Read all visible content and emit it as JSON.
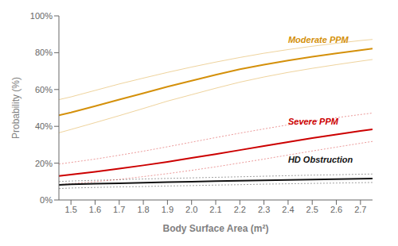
{
  "chart_data": {
    "type": "line",
    "title": "",
    "xlabel": "Body Surface Area (m²)",
    "ylabel": "Probability (%)",
    "x": [
      1.45,
      1.5,
      1.6,
      1.7,
      1.8,
      1.9,
      2.0,
      2.1,
      2.2,
      2.3,
      2.4,
      2.5,
      2.6,
      2.7,
      2.75
    ],
    "xlim": [
      1.45,
      2.75
    ],
    "ylim": [
      0.0,
      1.0
    ],
    "xticks": [
      1.5,
      1.6,
      1.7,
      1.8,
      1.9,
      {
        "value": 2.0,
        "label": "2.0"
      },
      2.1,
      2.2,
      2.3,
      2.4,
      2.5,
      2.6,
      2.7
    ],
    "yticks": [
      {
        "value": 0.0,
        "label": "0%"
      },
      {
        "value": 0.2,
        "label": "20%"
      },
      {
        "value": 0.4,
        "label": "40%"
      },
      {
        "value": 0.6,
        "label": "60%"
      },
      {
        "value": 0.8,
        "label": "80%"
      },
      {
        "value": 1.0,
        "label": "100%"
      }
    ],
    "grid": false,
    "series": [
      {
        "name": "Moderate PPM",
        "color": "#D4900A",
        "values": [
          0.46,
          0.475,
          0.51,
          0.545,
          0.58,
          0.615,
          0.648,
          0.68,
          0.71,
          0.735,
          0.758,
          0.778,
          0.796,
          0.814,
          0.822
        ],
        "ci_upper": [
          0.545,
          0.56,
          0.595,
          0.63,
          0.662,
          0.693,
          0.722,
          0.749,
          0.774,
          0.797,
          0.817,
          0.835,
          0.851,
          0.866,
          0.872
        ],
        "ci_lower": [
          0.365,
          0.383,
          0.42,
          0.458,
          0.497,
          0.537,
          0.572,
          0.607,
          0.64,
          0.668,
          0.693,
          0.715,
          0.735,
          0.754,
          0.763
        ]
      },
      {
        "name": "Severe PPM",
        "color": "#CC0000",
        "values": [
          0.13,
          0.138,
          0.153,
          0.17,
          0.188,
          0.207,
          0.228,
          0.249,
          0.271,
          0.293,
          0.315,
          0.336,
          0.356,
          0.375,
          0.384
        ],
        "ci_upper": [
          0.195,
          0.204,
          0.222,
          0.243,
          0.265,
          0.289,
          0.314,
          0.339,
          0.363,
          0.386,
          0.408,
          0.428,
          0.447,
          0.464,
          0.472
        ],
        "ci_lower": [
          0.083,
          0.089,
          0.099,
          0.112,
          0.127,
          0.143,
          0.161,
          0.18,
          0.201,
          0.222,
          0.244,
          0.266,
          0.287,
          0.308,
          0.318
        ]
      },
      {
        "name": "HD Obstruction",
        "color": "#111111",
        "values": [
          0.082,
          0.085,
          0.088,
          0.091,
          0.094,
          0.097,
          0.099,
          0.102,
          0.104,
          0.107,
          0.109,
          0.111,
          0.113,
          0.115,
          0.116
        ],
        "ci_upper": [
          0.1,
          0.103,
          0.107,
          0.11,
          0.114,
          0.117,
          0.12,
          0.123,
          0.126,
          0.129,
          0.132,
          0.135,
          0.137,
          0.14,
          0.141
        ],
        "ci_lower": [
          0.062,
          0.065,
          0.068,
          0.071,
          0.073,
          0.076,
          0.078,
          0.081,
          0.083,
          0.086,
          0.088,
          0.09,
          0.092,
          0.094,
          0.095
        ]
      }
    ]
  }
}
